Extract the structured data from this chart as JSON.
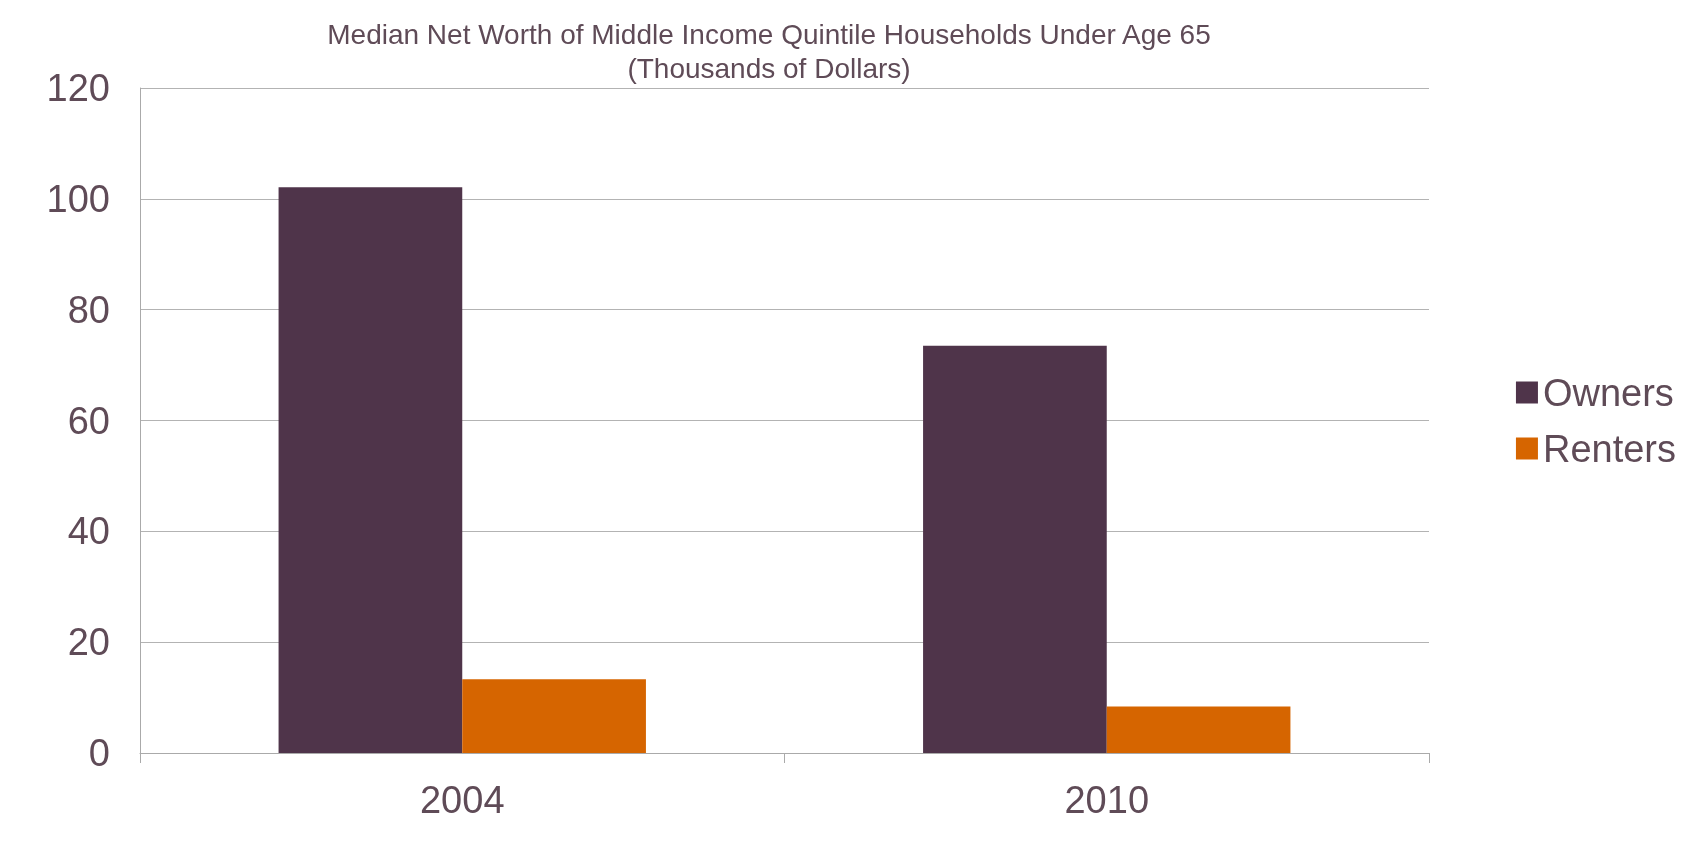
{
  "chart_data": {
    "type": "bar",
    "title": "Median Net Worth of Middle Income Quintile Households Under Age 65\n(Thousands of Dollars)",
    "categories": [
      "2004",
      "2010"
    ],
    "series": [
      {
        "name": "Owners",
        "color": "#4f344a",
        "values": [
          102.1,
          73.5
        ]
      },
      {
        "name": "Renters",
        "color": "#d66500",
        "values": [
          13.3,
          8.4
        ]
      }
    ],
    "ylim": [
      0,
      120
    ],
    "yticks": [
      0,
      20,
      40,
      60,
      80,
      100,
      120
    ],
    "grid": "y",
    "legend": "right"
  }
}
